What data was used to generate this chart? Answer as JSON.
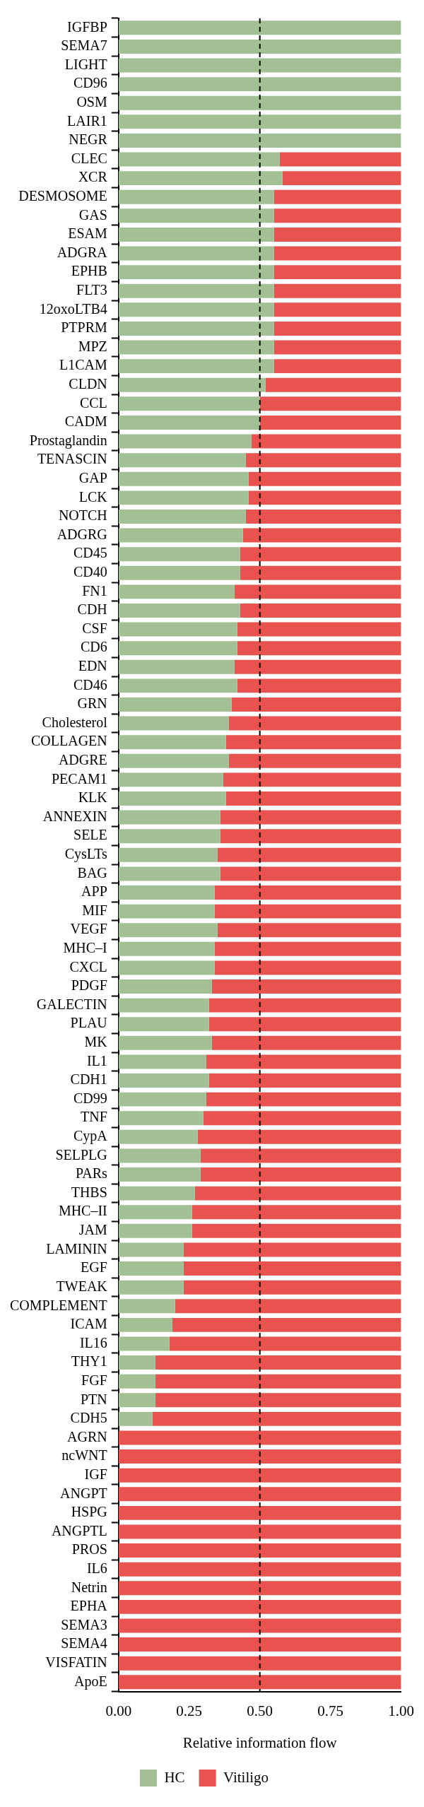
{
  "chart_data": {
    "type": "bar",
    "orientation": "horizontal",
    "stacked": true,
    "xlabel": "Relative information flow",
    "categories": [
      "IGFBP",
      "SEMA7",
      "LIGHT",
      "CD96",
      "OSM",
      "LAIR1",
      "NEGR",
      "CLEC",
      "XCR",
      "DESMOSOME",
      "GAS",
      "ESAM",
      "ADGRA",
      "EPHB",
      "FLT3",
      "12oxoLTB4",
      "PTPRM",
      "MPZ",
      "L1CAM",
      "CLDN",
      "CCL",
      "CADM",
      "Prostaglandin",
      "TENASCIN",
      "GAP",
      "LCK",
      "NOTCH",
      "ADGRG",
      "CD45",
      "CD40",
      "FN1",
      "CDH",
      "CSF",
      "CD6",
      "EDN",
      "CD46",
      "GRN",
      "Cholesterol",
      "COLLAGEN",
      "ADGRE",
      "PECAM1",
      "KLK",
      "ANNEXIN",
      "SELE",
      "CysLTs",
      "BAG",
      "APP",
      "MIF",
      "VEGF",
      "MHC–I",
      "CXCL",
      "PDGF",
      "GALECTIN",
      "PLAU",
      "MK",
      "IL1",
      "CDH1",
      "CD99",
      "TNF",
      "CypA",
      "SELPLG",
      "PARs",
      "THBS",
      "MHC–II",
      "JAM",
      "LAMININ",
      "EGF",
      "TWEAK",
      "COMPLEMENT",
      "ICAM",
      "IL16",
      "THY1",
      "FGF",
      "PTN",
      "CDH5",
      "AGRN",
      "ncWNT",
      "IGF",
      "ANGPT",
      "HSPG",
      "ANGPTL",
      "PROS",
      "IL6",
      "Netrin",
      "EPHA",
      "SEMA3",
      "SEMA4",
      "VISFATIN",
      "ApoE"
    ],
    "series": [
      {
        "name": "HC",
        "color": "#a3bf94",
        "values": [
          1,
          1,
          1,
          1,
          1,
          1,
          1,
          0.57,
          0.58,
          0.55,
          0.55,
          0.55,
          0.55,
          0.55,
          0.55,
          0.55,
          0.55,
          0.55,
          0.55,
          0.52,
          0.5,
          0.5,
          0.47,
          0.45,
          0.46,
          0.46,
          0.45,
          0.44,
          0.43,
          0.43,
          0.41,
          0.43,
          0.42,
          0.42,
          0.41,
          0.42,
          0.4,
          0.39,
          0.38,
          0.39,
          0.37,
          0.38,
          0.36,
          0.36,
          0.35,
          0.36,
          0.34,
          0.34,
          0.35,
          0.34,
          0.34,
          0.33,
          0.32,
          0.32,
          0.33,
          0.31,
          0.32,
          0.31,
          0.3,
          0.28,
          0.29,
          0.29,
          0.27,
          0.26,
          0.26,
          0.23,
          0.23,
          0.23,
          0.2,
          0.19,
          0.18,
          0.13,
          0.13,
          0.13,
          0.12,
          0,
          0,
          0,
          0,
          0,
          0,
          0,
          0,
          0,
          0,
          0,
          0,
          0,
          0
        ]
      },
      {
        "name": "Vitiligo",
        "color": "#e8534f",
        "values": [
          0,
          0,
          0,
          0,
          0,
          0,
          0,
          0.43,
          0.42,
          0.45,
          0.45,
          0.45,
          0.45,
          0.45,
          0.45,
          0.45,
          0.45,
          0.45,
          0.45,
          0.48,
          0.5,
          0.5,
          0.53,
          0.55,
          0.54,
          0.54,
          0.55,
          0.56,
          0.57,
          0.57,
          0.59,
          0.57,
          0.58,
          0.58,
          0.59,
          0.58,
          0.6,
          0.61,
          0.62,
          0.61,
          0.63,
          0.62,
          0.64,
          0.64,
          0.65,
          0.64,
          0.66,
          0.66,
          0.65,
          0.66,
          0.66,
          0.67,
          0.68,
          0.68,
          0.67,
          0.69,
          0.68,
          0.69,
          0.7,
          0.72,
          0.71,
          0.71,
          0.73,
          0.74,
          0.74,
          0.77,
          0.77,
          0.77,
          0.8,
          0.81,
          0.82,
          0.87,
          0.87,
          0.87,
          0.88,
          1,
          1,
          1,
          1,
          1,
          1,
          1,
          1,
          1,
          1,
          1,
          1,
          1,
          1
        ]
      }
    ],
    "xlim": [
      0,
      1
    ],
    "xticks": [
      {
        "value": 0,
        "label": "0.00"
      },
      {
        "value": 0.25,
        "label": "0.25"
      },
      {
        "value": 0.5,
        "label": "0.50"
      },
      {
        "value": 0.75,
        "label": "0.75"
      },
      {
        "value": 1,
        "label": "1.00"
      }
    ],
    "ref_lines": [
      {
        "axis": "x",
        "value": 0.5,
        "color": "#000000",
        "line_style": "dashed"
      }
    ],
    "grid": false,
    "legend": "bottom"
  }
}
